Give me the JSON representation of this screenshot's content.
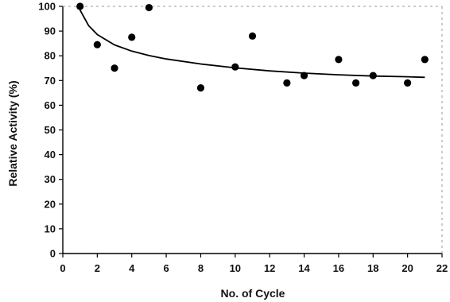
{
  "chart_data": {
    "type": "scatter",
    "xlabel": "No. of Cycle",
    "ylabel": "Relative Activity (%)",
    "xlim": [
      0,
      22
    ],
    "ylim": [
      0,
      100
    ],
    "xticks": [
      0,
      2,
      4,
      6,
      8,
      10,
      12,
      14,
      16,
      18,
      20,
      22
    ],
    "yticks": [
      0,
      10,
      20,
      30,
      40,
      50,
      60,
      70,
      80,
      90,
      100
    ],
    "grid": false,
    "series": [
      {
        "x": [
          1,
          2,
          3,
          4,
          5,
          8,
          10,
          11,
          13,
          14,
          16,
          17,
          18,
          20,
          21
        ],
        "y": [
          100,
          84.5,
          75,
          87.5,
          99.5,
          67,
          75.5,
          88,
          69,
          72,
          78.5,
          69,
          72,
          69,
          78.5
        ],
        "color": "#000000"
      }
    ],
    "trendline": {
      "type": "logarithmic",
      "x": [
        1,
        1.5,
        2,
        3,
        4,
        5,
        6,
        8,
        10,
        12,
        14,
        16,
        18,
        20,
        21
      ],
      "y": [
        98.5,
        92.2,
        88.6,
        84.4,
        81.9,
        80.1,
        78.7,
        76.7,
        75.1,
        73.9,
        73.0,
        72.3,
        71.8,
        71.5,
        71.3
      ],
      "color": "#000000"
    }
  }
}
